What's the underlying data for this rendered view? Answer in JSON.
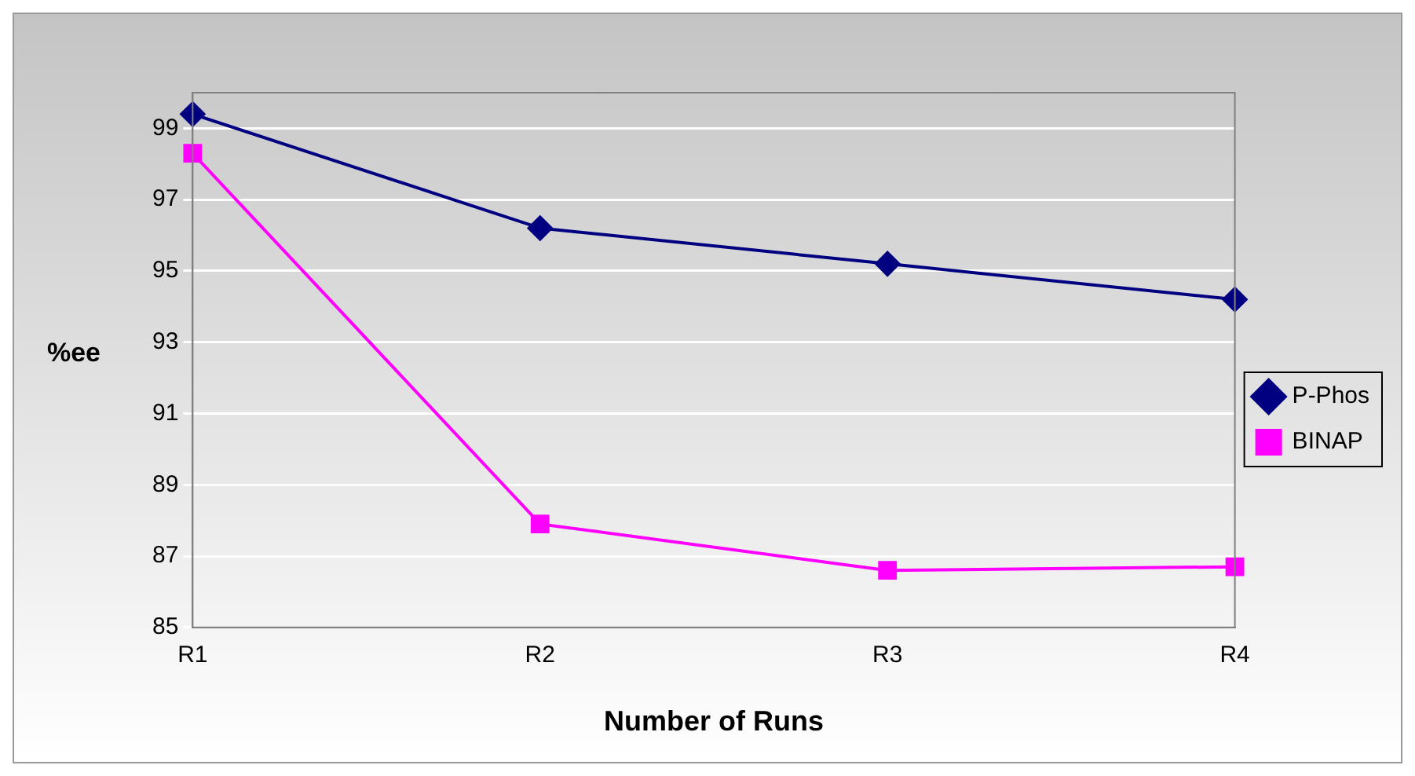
{
  "chart_data": {
    "type": "line",
    "xlabel": "Number of Runs",
    "ylabel": "%ee",
    "categories": [
      "R1",
      "R2",
      "R3",
      "R4"
    ],
    "series": [
      {
        "name": "P-Phos",
        "color": "#000080",
        "values": [
          99.4,
          96.2,
          95.2,
          94.2
        ],
        "marker": "diamond"
      },
      {
        "name": "BINAP",
        "color": "#ff00ff",
        "values": [
          98.3,
          87.9,
          86.6,
          86.7
        ],
        "marker": "square"
      }
    ],
    "ylim": [
      85,
      100
    ],
    "yticks": [
      85,
      87,
      89,
      91,
      93,
      95,
      97,
      99
    ],
    "grid": "y",
    "legend": "right",
    "line_style": "solid"
  }
}
